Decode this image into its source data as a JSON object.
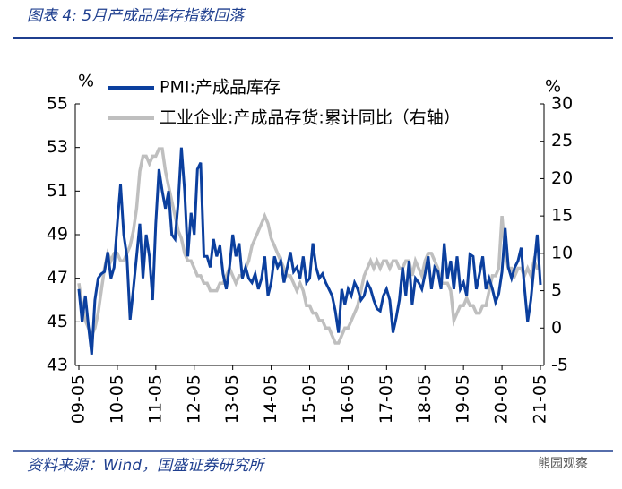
{
  "header": {
    "title": "图表 4:  5月产成品库存指数回落"
  },
  "chart_data": {
    "type": "line",
    "y_unit": "%",
    "y2_unit": "%",
    "categories": [
      "09-05",
      null,
      null,
      null,
      null,
      null,
      null,
      null,
      null,
      null,
      null,
      null,
      "10-05",
      null,
      null,
      null,
      null,
      null,
      null,
      null,
      null,
      null,
      null,
      null,
      "11-05",
      null,
      null,
      null,
      null,
      null,
      null,
      null,
      null,
      null,
      null,
      null,
      "12-05",
      null,
      null,
      null,
      null,
      null,
      null,
      null,
      null,
      null,
      null,
      null,
      "13-05",
      null,
      null,
      null,
      null,
      null,
      null,
      null,
      null,
      null,
      null,
      null,
      "14-05",
      null,
      null,
      null,
      null,
      null,
      null,
      null,
      null,
      null,
      null,
      null,
      "15-05",
      null,
      null,
      null,
      null,
      null,
      null,
      null,
      null,
      null,
      null,
      null,
      "16-05",
      null,
      null,
      null,
      null,
      null,
      null,
      null,
      null,
      null,
      null,
      null,
      "17-05",
      null,
      null,
      null,
      null,
      null,
      null,
      null,
      null,
      null,
      null,
      null,
      "18-05",
      null,
      null,
      null,
      null,
      null,
      null,
      null,
      null,
      null,
      null,
      null,
      "19-05",
      null,
      null,
      null,
      null,
      null,
      null,
      null,
      null,
      null,
      null,
      null,
      "20-05",
      null,
      null,
      null,
      null,
      null,
      null,
      null,
      null,
      null,
      null,
      null,
      "21-05"
    ],
    "series": [
      {
        "name": "PMI:产成品库存",
        "color": "#0b3f9e",
        "axis": "y",
        "values": [
          46.5,
          45.0,
          46.2,
          44.8,
          43.5,
          46.0,
          47.0,
          47.2,
          47.3,
          48.2,
          47.0,
          47.5,
          49.5,
          51.3,
          49.0,
          48.0,
          45.1,
          46.5,
          48.0,
          49.5,
          47.0,
          49.0,
          48.0,
          46.0,
          49.5,
          52.0,
          51.0,
          50.2,
          51.0,
          49.0,
          48.8,
          50.5,
          53.0,
          51.0,
          48.0,
          50.0,
          49.0,
          52.0,
          52.3,
          48.0,
          48.0,
          47.5,
          48.8,
          48.0,
          48.5,
          47.2,
          46.5,
          47.5,
          49.0,
          48.0,
          48.6,
          47.0,
          47.5,
          47.0,
          46.8,
          47.2,
          46.5,
          47.0,
          48.0,
          46.2,
          46.8,
          48.0,
          47.5,
          47.8,
          46.8,
          47.5,
          48.2,
          47.3,
          47.5,
          47.0,
          48.0,
          46.8,
          47.0,
          48.6,
          47.5,
          47.0,
          47.2,
          46.8,
          46.5,
          46.2,
          45.5,
          44.5,
          46.5,
          45.8,
          46.5,
          46.2,
          46.8,
          46.5,
          46.0,
          46.2,
          46.8,
          46.5,
          46.0,
          45.6,
          45.5,
          46.2,
          46.5,
          46.0,
          44.5,
          45.2,
          46.0,
          47.5,
          46.2,
          47.8,
          45.8,
          47.0,
          46.8,
          46.5,
          47.2,
          48.0,
          46.5,
          47.5,
          47.3,
          46.5,
          48.6,
          47.0,
          47.8,
          46.5,
          48.0,
          46.5,
          46.8,
          46.2,
          48.1,
          48.0,
          46.5,
          47.2,
          48.0,
          46.5,
          47.0,
          46.5,
          45.9,
          46.3,
          47.3,
          49.3,
          47.5,
          47.0,
          47.5,
          47.8,
          48.4,
          46.6,
          45.0,
          46.0,
          47.5,
          49.0,
          46.7
        ]
      },
      {
        "name": "工业企业:产成品存货:累计同比（右轴）",
        "color": "#bfbfbf",
        "axis": "y2",
        "values": [
          6,
          3,
          1,
          0,
          -1,
          0,
          2,
          5,
          8,
          10,
          9,
          10,
          10,
          9,
          9,
          10,
          11,
          13,
          16,
          21,
          23,
          23,
          22,
          23,
          23,
          24,
          24,
          21,
          19,
          17,
          15,
          13,
          12,
          10,
          9,
          9,
          8,
          7,
          7,
          6,
          6,
          5,
          5,
          5,
          6,
          6,
          7,
          8,
          7,
          6,
          7,
          7,
          8,
          9,
          11,
          12,
          13,
          14,
          15,
          14,
          12,
          11,
          10,
          9,
          8,
          7,
          7,
          6,
          5,
          6,
          5,
          3,
          3,
          2,
          2,
          1,
          1,
          0,
          0,
          -1,
          -2,
          -2,
          -1,
          0,
          0,
          1,
          2,
          3,
          5,
          7,
          8,
          9,
          8,
          9,
          8,
          9,
          9,
          8,
          9,
          9,
          8,
          8,
          9,
          9,
          7,
          9,
          8,
          7,
          9,
          10,
          10,
          9,
          8,
          6,
          6,
          6,
          5,
          1,
          2,
          3,
          3,
          4,
          3,
          3,
          2,
          2,
          3,
          3,
          5,
          7,
          7,
          8,
          15,
          10,
          8,
          8,
          7,
          8,
          8,
          7,
          8,
          7,
          9,
          8,
          8
        ]
      }
    ],
    "ylim": [
      43,
      55
    ],
    "yticks": [
      43,
      45,
      47,
      49,
      51,
      53,
      55
    ],
    "y2lim": [
      -5,
      30
    ],
    "y2ticks": [
      -5,
      0,
      5,
      10,
      15,
      20,
      25,
      30
    ],
    "legend": "top-left"
  },
  "footer": {
    "source": "资料来源：Wind，国盛证券研究所",
    "watermark": "熊园观察"
  }
}
